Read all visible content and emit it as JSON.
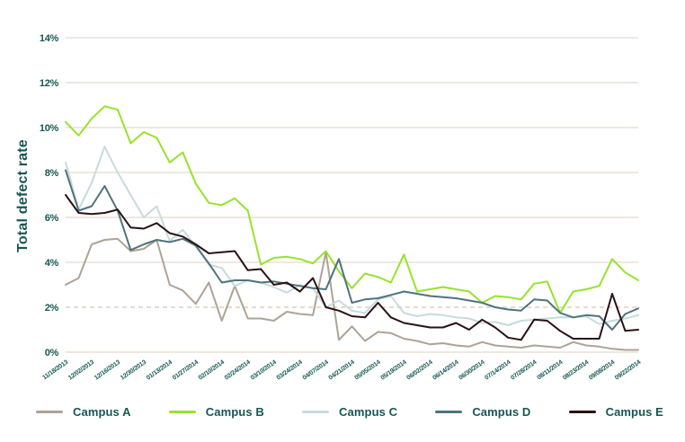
{
  "chart_data": {
    "type": "line",
    "title": "",
    "ylabel": "Total defect rate",
    "y_unit": "%",
    "y_ticks": [
      0,
      2,
      4,
      6,
      8,
      10,
      12,
      14
    ],
    "y_tick_suffix": "%",
    "ylim": [
      0,
      14
    ],
    "threshold_line": {
      "value": 2,
      "style": "dashed"
    },
    "grid": "horizontal",
    "legend_position": "bottom",
    "x_tick_labels": [
      "11/18/2013",
      "12/02/2013",
      "12/16/2013",
      "12/30/2013",
      "01/13/2014",
      "01/27/2014",
      "02/10/2014",
      "02/24/2014",
      "03/10/2014",
      "03/24/2014",
      "04/07/2014",
      "04/21/2014",
      "05/05/2014",
      "05/19/2014",
      "06/02/2014",
      "06/14/2014",
      "06/30/2014",
      "07/14/2014",
      "07/28/2014",
      "08/11/2014",
      "08/23/2014",
      "09/08/2014",
      "09/22/2014"
    ],
    "points_per_tick": 2,
    "series": [
      {
        "name": "Campus A",
        "color": "#aea395",
        "values": [
          3.0,
          3.3,
          4.8,
          5.0,
          5.05,
          4.5,
          4.6,
          5.0,
          3.0,
          2.75,
          2.15,
          3.1,
          1.4,
          2.95,
          1.5,
          1.5,
          1.4,
          1.8,
          1.7,
          1.65,
          4.45,
          0.55,
          1.15,
          0.5,
          0.9,
          0.85,
          0.6,
          0.5,
          0.35,
          0.4,
          0.3,
          0.25,
          0.45,
          0.3,
          0.25,
          0.2,
          0.3,
          0.25,
          0.2,
          0.45,
          0.3,
          0.25,
          0.15,
          0.1,
          0.1
        ]
      },
      {
        "name": "Campus B",
        "color": "#97e32c",
        "values": [
          10.25,
          9.65,
          10.4,
          10.95,
          10.8,
          9.3,
          9.8,
          9.55,
          8.45,
          8.9,
          7.5,
          6.65,
          6.55,
          6.85,
          6.3,
          3.9,
          4.2,
          4.25,
          4.15,
          3.95,
          4.5,
          3.6,
          2.85,
          3.5,
          3.35,
          3.1,
          4.35,
          2.7,
          2.8,
          2.9,
          2.8,
          2.7,
          2.2,
          2.5,
          2.45,
          2.35,
          3.05,
          3.15,
          1.75,
          2.7,
          2.8,
          2.95,
          4.15,
          3.55,
          3.2
        ]
      },
      {
        "name": "Campus C",
        "color": "#c7dadd",
        "values": [
          8.45,
          6.35,
          7.55,
          9.15,
          8.0,
          7.0,
          6.0,
          6.5,
          4.95,
          5.45,
          4.7,
          3.9,
          3.75,
          2.95,
          3.2,
          3.1,
          2.9,
          2.65,
          3.0,
          2.85,
          2.0,
          2.3,
          1.85,
          1.75,
          2.35,
          2.5,
          1.75,
          1.6,
          1.7,
          1.65,
          1.55,
          1.5,
          1.3,
          1.35,
          1.2,
          1.4,
          1.45,
          1.5,
          1.55,
          1.55,
          1.6,
          1.25,
          1.4,
          1.5,
          1.65
        ]
      },
      {
        "name": "Campus D",
        "color": "#4e737d",
        "values": [
          8.1,
          6.3,
          6.5,
          7.4,
          6.3,
          4.55,
          4.8,
          5.0,
          4.9,
          5.05,
          4.75,
          3.95,
          3.1,
          3.2,
          3.2,
          3.1,
          3.15,
          3.05,
          2.95,
          2.85,
          2.8,
          4.15,
          2.2,
          2.35,
          2.4,
          2.55,
          2.7,
          2.6,
          2.5,
          2.45,
          2.4,
          2.3,
          2.2,
          2.0,
          1.9,
          1.85,
          2.35,
          2.3,
          1.75,
          1.55,
          1.65,
          1.6,
          1.0,
          1.7,
          1.95
        ]
      },
      {
        "name": "Campus E",
        "color": "#2a1115",
        "values": [
          7.0,
          6.2,
          6.15,
          6.2,
          6.35,
          5.55,
          5.5,
          5.75,
          5.3,
          5.15,
          4.8,
          4.4,
          4.45,
          4.5,
          3.65,
          3.7,
          3.0,
          3.1,
          2.7,
          3.3,
          2.0,
          1.85,
          1.6,
          1.55,
          2.2,
          1.55,
          1.3,
          1.2,
          1.1,
          1.1,
          1.3,
          1.0,
          1.45,
          1.1,
          0.65,
          0.55,
          1.45,
          1.4,
          0.95,
          0.6,
          0.6,
          0.6,
          2.6,
          0.95,
          1.0
        ]
      }
    ],
    "colors": {
      "axis_text": "#155752",
      "gridline": "#e8e1d5",
      "threshold_dash": "#dcd0bc"
    }
  }
}
